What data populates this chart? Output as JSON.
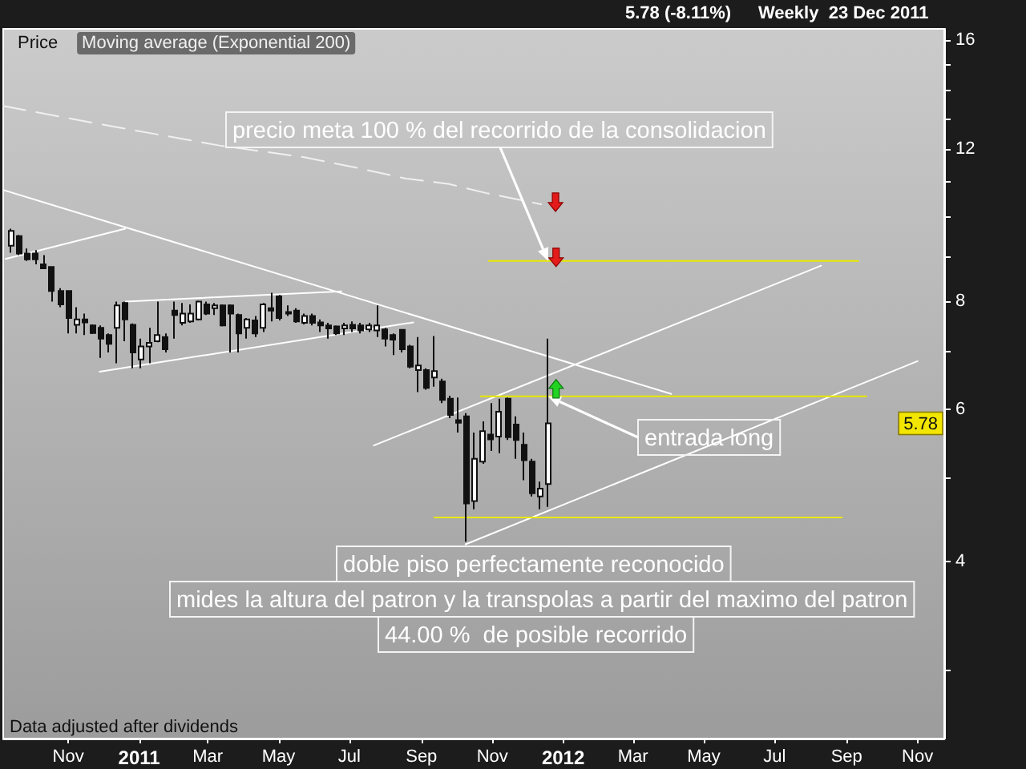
{
  "chart_data": {
    "type": "candlestick",
    "title": "5.78 (-8.11%)",
    "subtitle": "Weekly  23 Dec 2011",
    "annotations": [
      {
        "text": "precio meta 100 % del recorrido de la consolidacion",
        "x": "2011-12-19",
        "y": 8.9
      },
      {
        "text": "entrada long",
        "x": "2011-12-19",
        "y": 6.21
      },
      "doble piso perfectamente reconocido",
      "mides la altura del patron y la transpolas a partir del maximo del patron",
      "44.00 %  de posible recorrido",
      "Data adjusted after dividends",
      {
        "text": "5.78",
        "y": 5.78
      }
    ],
    "xlim": [
      "2010-09-06",
      "2012-11-24"
    ],
    "xticks": [
      {
        "value": "2010-11-01",
        "label": "Nov"
      },
      {
        "value": "2011-01-01",
        "label": "2011"
      },
      {
        "value": "2011-03-01",
        "label": "Mar"
      },
      {
        "value": "2011-05-01",
        "label": "May"
      },
      {
        "value": "2011-07-01",
        "label": "Jul"
      },
      {
        "value": "2011-09-01",
        "label": "Sep"
      },
      {
        "value": "2011-11-01",
        "label": "Nov"
      },
      {
        "value": "2012-01-01",
        "label": "2012"
      },
      {
        "value": "2012-03-01",
        "label": "Mar"
      },
      {
        "value": "2012-05-01",
        "label": "May"
      },
      {
        "value": "2012-07-01",
        "label": "Jul"
      },
      {
        "value": "2012-09-01",
        "label": "Sep"
      },
      {
        "value": "2012-11-01",
        "label": "Nov"
      }
    ],
    "ylim": [
      2.5,
      16.5
    ],
    "log": true,
    "yticks": [
      {
        "value": 3,
        "label": null
      },
      4,
      {
        "value": 5,
        "label": null
      },
      6,
      {
        "value": 7,
        "label": null
      },
      8,
      {
        "value": 9,
        "label": null
      },
      {
        "value": 10,
        "label": null
      },
      {
        "value": 11,
        "label": null
      },
      12,
      {
        "value": 13,
        "label": null
      },
      {
        "value": 14,
        "label": null
      },
      {
        "value": 15,
        "label": null
      },
      16
    ],
    "legend": "top left",
    "marker": "none",
    "series": [
      {
        "name": "Price",
        "color": "#111111",
        "x": [
          "2010-09-13",
          "2010-09-20",
          "2010-09-27",
          "2010-10-04",
          "2010-10-11",
          "2010-10-18",
          "2010-10-25",
          "2010-11-01",
          "2010-11-08",
          "2010-11-15",
          "2010-11-22",
          "2010-11-29",
          "2010-12-06",
          "2010-12-13",
          "2010-12-20",
          "2010-12-27",
          "2011-01-03",
          "2011-01-10",
          "2011-01-17",
          "2011-01-24",
          "2011-01-31",
          "2011-02-07",
          "2011-02-14",
          "2011-02-21",
          "2011-02-28",
          "2011-03-07",
          "2011-03-14",
          "2011-03-21",
          "2011-03-28",
          "2011-04-04",
          "2011-04-11",
          "2011-04-18",
          "2011-04-25",
          "2011-05-02",
          "2011-05-09",
          "2011-05-16",
          "2011-05-23",
          "2011-05-30",
          "2011-06-06",
          "2011-06-13",
          "2011-06-20",
          "2011-06-27",
          "2011-07-04",
          "2011-07-11",
          "2011-07-18",
          "2011-07-25",
          "2011-08-01",
          "2011-08-08",
          "2011-08-15",
          "2011-08-22",
          "2011-08-29",
          "2011-09-05",
          "2011-09-12",
          "2011-09-19",
          "2011-09-26",
          "2011-10-03",
          "2011-10-10",
          "2011-10-17",
          "2011-10-24",
          "2011-10-31",
          "2011-11-07",
          "2011-11-14",
          "2011-11-21",
          "2011-11-28",
          "2011-12-05",
          "2011-12-12",
          "2011-12-19"
        ],
        "ohlc": [
          [
            9.27,
            9.7,
            9.1,
            9.64
          ],
          [
            9.51,
            9.54,
            9.04,
            9.08
          ],
          [
            9.08,
            9.2,
            8.9,
            8.94
          ],
          [
            9.08,
            9.16,
            8.82,
            8.94
          ],
          [
            8.82,
            9.04,
            8.73,
            8.73
          ],
          [
            8.76,
            8.78,
            7.99,
            8.22
          ],
          [
            8.22,
            8.28,
            7.87,
            7.93
          ],
          [
            8.22,
            8.22,
            7.34,
            7.65
          ],
          [
            7.51,
            7.87,
            7.34,
            7.62
          ],
          [
            7.62,
            7.74,
            7.31,
            7.56
          ],
          [
            7.5,
            7.52,
            7.33,
            7.35
          ],
          [
            7.45,
            7.5,
            6.88,
            7.24
          ],
          [
            7.31,
            7.34,
            6.98,
            7.14
          ],
          [
            7.45,
            7.99,
            6.78,
            7.91
          ],
          [
            7.96,
            7.99,
            7.19,
            7.62
          ],
          [
            7.51,
            7.54,
            6.69,
            6.98
          ],
          [
            6.85,
            7.24,
            6.69,
            7.09
          ],
          [
            7.09,
            7.45,
            6.78,
            7.16
          ],
          [
            7.19,
            7.99,
            7.17,
            7.31
          ],
          [
            7.27,
            7.34,
            6.98,
            7.04
          ],
          [
            7.8,
            7.99,
            7.24,
            7.71
          ],
          [
            7.55,
            7.96,
            7.5,
            7.74
          ],
          [
            7.58,
            7.93,
            7.55,
            7.74
          ],
          [
            7.62,
            8.01,
            7.6,
            7.99
          ],
          [
            7.93,
            7.99,
            7.71,
            7.74
          ],
          [
            7.85,
            7.96,
            7.71,
            7.91
          ],
          [
            7.91,
            7.93,
            7.48,
            7.5
          ],
          [
            7.91,
            7.93,
            6.98,
            7.74
          ],
          [
            7.71,
            7.74,
            6.98,
            7.34
          ],
          [
            7.45,
            7.65,
            7.24,
            7.62
          ],
          [
            7.6,
            7.69,
            7.27,
            7.34
          ],
          [
            7.45,
            7.96,
            7.37,
            7.93
          ],
          [
            7.85,
            8.18,
            7.58,
            7.8
          ],
          [
            8.1,
            8.13,
            7.6,
            7.65
          ],
          [
            7.77,
            7.91,
            7.69,
            7.74
          ],
          [
            7.8,
            7.85,
            7.55,
            7.58
          ],
          [
            7.55,
            7.74,
            7.52,
            7.69
          ],
          [
            7.69,
            7.74,
            7.5,
            7.55
          ],
          [
            7.56,
            7.62,
            7.37,
            7.5
          ],
          [
            7.5,
            7.55,
            7.24,
            7.44
          ],
          [
            7.48,
            7.5,
            7.31,
            7.34
          ],
          [
            7.44,
            7.55,
            7.31,
            7.5
          ],
          [
            7.51,
            7.58,
            7.37,
            7.44
          ],
          [
            7.5,
            7.55,
            7.34,
            7.4
          ],
          [
            7.42,
            7.55,
            7.37,
            7.5
          ],
          [
            7.4,
            7.91,
            7.27,
            7.5
          ],
          [
            7.42,
            7.45,
            7.09,
            7.24
          ],
          [
            7.31,
            7.34,
            6.93,
            7.22
          ],
          [
            7.41,
            7.42,
            6.98,
            7.04
          ],
          [
            7.09,
            7.12,
            6.69,
            6.72
          ],
          [
            6.66,
            7.27,
            6.28,
            6.74
          ],
          [
            6.66,
            6.69,
            6.32,
            6.35
          ],
          [
            6.53,
            7.29,
            6.37,
            6.64
          ],
          [
            6.46,
            6.51,
            6.1,
            6.15
          ],
          [
            6.17,
            6.22,
            5.86,
            5.91
          ],
          [
            5.83,
            6.19,
            5.64,
            5.79
          ],
          [
            5.89,
            5.94,
            4.22,
            4.67
          ],
          [
            4.7,
            5.64,
            4.6,
            5.26
          ],
          [
            5.22,
            5.81,
            5.19,
            5.66
          ],
          [
            5.61,
            6.1,
            5.37,
            5.54
          ],
          [
            5.58,
            6.17,
            5.34,
            5.96
          ],
          [
            6.17,
            6.19,
            5.53,
            5.57
          ],
          [
            5.76,
            5.89,
            5.26,
            5.53
          ],
          [
            5.46,
            5.64,
            4.97,
            5.24
          ],
          [
            5.22,
            5.26,
            4.76,
            4.8
          ],
          [
            4.76,
            4.95,
            4.6,
            4.86
          ],
          [
            4.92,
            7.24,
            4.63,
            5.78
          ]
        ]
      },
      {
        "type": "line",
        "name": "Moving average (Exponential 200)",
        "color": "#f0f0f0",
        "line_style": "dashed",
        "x": [
          "2010-09-06",
          "2010-12-09",
          "2011-03-11",
          "2011-05-23",
          "2011-07-05",
          "2011-08-19",
          "2011-09-25",
          "2011-10-27",
          "2011-12-13"
        ],
        "values": [
          13.44,
          12.73,
          12.1,
          11.73,
          11.42,
          11.08,
          10.92,
          10.66,
          10.35
        ]
      },
      {
        "type": "line",
        "color": "#ffffff",
        "x": [
          "2010-09-06",
          "2012-04-03"
        ],
        "values": [
          10.75,
          6.25
        ]
      },
      {
        "type": "line",
        "color": "#ffffff",
        "x": [
          "2010-09-08",
          "2010-12-20"
        ],
        "values": [
          8.95,
          9.7
        ]
      },
      {
        "type": "line",
        "color": "#ffffff",
        "x": [
          "2010-12-20",
          "2011-06-24"
        ],
        "values": [
          7.99,
          8.21
        ]
      },
      {
        "type": "line",
        "color": "#ffffff",
        "x": [
          "2010-11-28",
          "2011-08-25"
        ],
        "values": [
          6.63,
          7.56
        ]
      },
      {
        "type": "line",
        "color": "#ffffff",
        "x": [
          "2011-07-22",
          "2012-08-10"
        ],
        "values": [
          5.45,
          8.79
        ]
      },
      {
        "type": "line",
        "color": "#ffffff",
        "x": [
          "2011-10-09",
          "2012-11-01"
        ],
        "values": [
          4.19,
          6.82
        ]
      },
      {
        "type": "line",
        "color": "#e8e800",
        "x": [
          "2011-10-29",
          "2012-09-11"
        ],
        "values": [
          8.9,
          8.9
        ]
      },
      {
        "type": "line",
        "color": "#e8e800",
        "x": [
          "2011-10-22",
          "2012-09-18"
        ],
        "values": [
          6.21,
          6.21
        ]
      },
      {
        "type": "line",
        "color": "#e8e800",
        "x": [
          "2011-09-12",
          "2012-08-28"
        ],
        "values": [
          4.5,
          4.5
        ]
      }
    ]
  }
}
